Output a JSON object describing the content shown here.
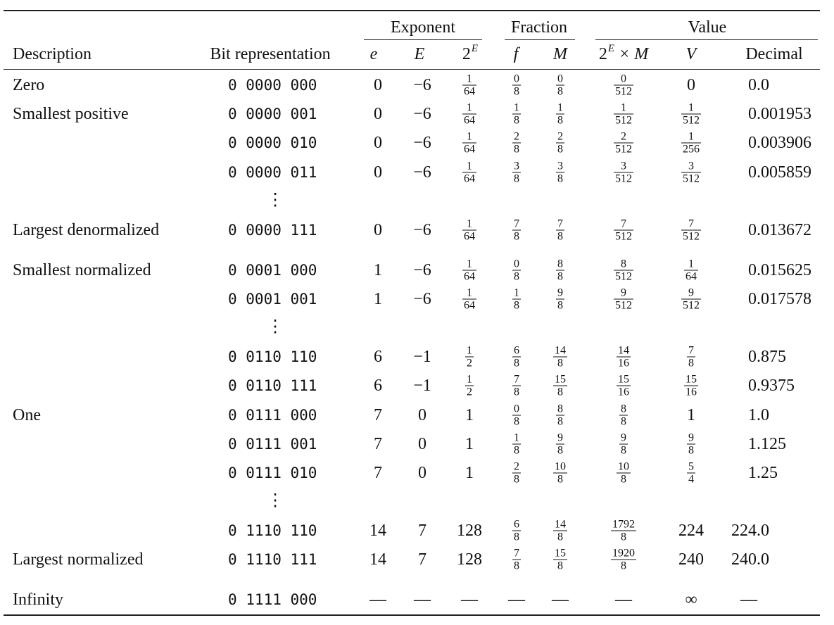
{
  "table": {
    "group_headers": {
      "exponent": "Exponent",
      "fraction": "Fraction",
      "value": "Value"
    },
    "columns": {
      "description": "Description",
      "bits": "Bit representation",
      "e": "e",
      "E": "E",
      "two_E_base": "2",
      "two_E_sup": "E",
      "f": "f",
      "M": "M",
      "two_E_M_base": "2",
      "two_E_M_sup": "E",
      "two_E_M_tail": " × M",
      "V": "V",
      "decimal": "Decimal"
    },
    "rows": [
      {
        "desc": "Zero",
        "bits": "0 0000 000",
        "e": "0",
        "E": "−6",
        "twoE": [
          "1",
          "64"
        ],
        "f": [
          "0",
          "8"
        ],
        "M": [
          "0",
          "8"
        ],
        "twoEM": [
          "0",
          "512"
        ],
        "V": "0",
        "dec": "0.0"
      },
      {
        "desc": "Smallest positive",
        "bits": "0 0000 001",
        "e": "0",
        "E": "−6",
        "twoE": [
          "1",
          "64"
        ],
        "f": [
          "1",
          "8"
        ],
        "M": [
          "1",
          "8"
        ],
        "twoEM": [
          "1",
          "512"
        ],
        "V": [
          "1",
          "512"
        ],
        "dec": "0.001953"
      },
      {
        "desc": "",
        "bits": "0 0000 010",
        "e": "0",
        "E": "−6",
        "twoE": [
          "1",
          "64"
        ],
        "f": [
          "2",
          "8"
        ],
        "M": [
          "2",
          "8"
        ],
        "twoEM": [
          "2",
          "512"
        ],
        "V": [
          "1",
          "256"
        ],
        "dec": "0.003906"
      },
      {
        "desc": "",
        "bits": "0 0000 011",
        "e": "0",
        "E": "−6",
        "twoE": [
          "1",
          "64"
        ],
        "f": [
          "3",
          "8"
        ],
        "M": [
          "3",
          "8"
        ],
        "twoEM": [
          "3",
          "512"
        ],
        "V": [
          "3",
          "512"
        ],
        "dec": "0.005859"
      },
      {
        "desc": "Largest denormalized",
        "bits": "0 0000 111",
        "e": "0",
        "E": "−6",
        "twoE": [
          "1",
          "64"
        ],
        "f": [
          "7",
          "8"
        ],
        "M": [
          "7",
          "8"
        ],
        "twoEM": [
          "7",
          "512"
        ],
        "V": [
          "7",
          "512"
        ],
        "dec": "0.013672"
      },
      {
        "desc": "Smallest normalized",
        "bits": "0 0001 000",
        "e": "1",
        "E": "−6",
        "twoE": [
          "1",
          "64"
        ],
        "f": [
          "0",
          "8"
        ],
        "M": [
          "8",
          "8"
        ],
        "twoEM": [
          "8",
          "512"
        ],
        "V": [
          "1",
          "64"
        ],
        "dec": "0.015625"
      },
      {
        "desc": "",
        "bits": "0 0001 001",
        "e": "1",
        "E": "−6",
        "twoE": [
          "1",
          "64"
        ],
        "f": [
          "1",
          "8"
        ],
        "M": [
          "9",
          "8"
        ],
        "twoEM": [
          "9",
          "512"
        ],
        "V": [
          "9",
          "512"
        ],
        "dec": "0.017578"
      },
      {
        "desc": "",
        "bits": "0 0110 110",
        "e": "6",
        "E": "−1",
        "twoE": [
          "1",
          "2"
        ],
        "f": [
          "6",
          "8"
        ],
        "M": [
          "14",
          "8"
        ],
        "twoEM": [
          "14",
          "16"
        ],
        "V": [
          "7",
          "8"
        ],
        "dec": "0.875"
      },
      {
        "desc": "",
        "bits": "0 0110 111",
        "e": "6",
        "E": "−1",
        "twoE": [
          "1",
          "2"
        ],
        "f": [
          "7",
          "8"
        ],
        "M": [
          "15",
          "8"
        ],
        "twoEM": [
          "15",
          "16"
        ],
        "V": [
          "15",
          "16"
        ],
        "dec": "0.9375"
      },
      {
        "desc": "One",
        "bits": "0 0111 000",
        "e": "7",
        "E": "0",
        "twoE": "1",
        "f": [
          "0",
          "8"
        ],
        "M": [
          "8",
          "8"
        ],
        "twoEM": [
          "8",
          "8"
        ],
        "V": "1",
        "dec": "1.0"
      },
      {
        "desc": "",
        "bits": "0 0111 001",
        "e": "7",
        "E": "0",
        "twoE": "1",
        "f": [
          "1",
          "8"
        ],
        "M": [
          "9",
          "8"
        ],
        "twoEM": [
          "9",
          "8"
        ],
        "V": [
          "9",
          "8"
        ],
        "dec": "1.125"
      },
      {
        "desc": "",
        "bits": "0 0111 010",
        "e": "7",
        "E": "0",
        "twoE": "1",
        "f": [
          "2",
          "8"
        ],
        "M": [
          "10",
          "8"
        ],
        "twoEM": [
          "10",
          "8"
        ],
        "V": [
          "5",
          "4"
        ],
        "dec": "1.25"
      },
      {
        "desc": "",
        "bits": "0 1110 110",
        "e": "14",
        "E": "7",
        "twoE": "128",
        "f": [
          "6",
          "8"
        ],
        "M": [
          "14",
          "8"
        ],
        "twoEM": [
          "1792",
          "8"
        ],
        "V": "224",
        "dec": "224.0"
      },
      {
        "desc": "Largest normalized",
        "bits": "0 1110 111",
        "e": "14",
        "E": "7",
        "twoE": "128",
        "f": [
          "7",
          "8"
        ],
        "M": [
          "15",
          "8"
        ],
        "twoEM": [
          "1920",
          "8"
        ],
        "V": "240",
        "dec": "240.0"
      },
      {
        "desc": "Infinity",
        "bits": "0 1111 000",
        "e": "—",
        "E": "—",
        "twoE": "—",
        "f": "—",
        "M": "—",
        "twoEM": "—",
        "V": "∞",
        "dec": "—"
      }
    ],
    "ellipsis": [
      "⋮",
      "⋮",
      "⋮"
    ]
  }
}
